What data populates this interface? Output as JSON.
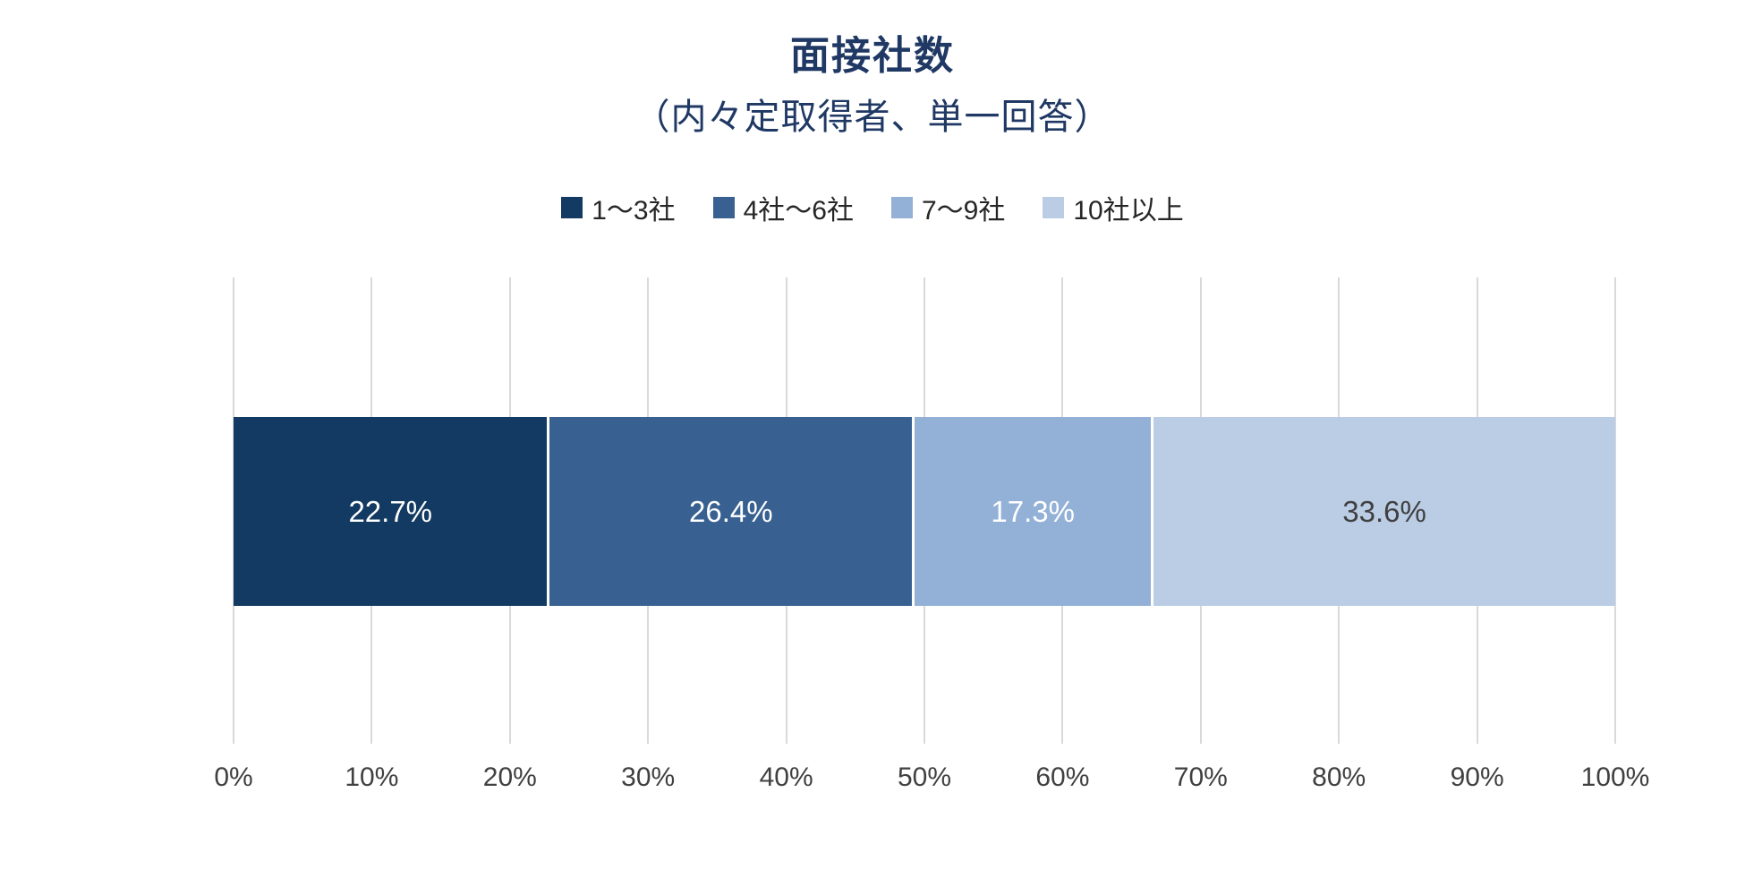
{
  "chart_data": {
    "type": "bar",
    "stacked": true,
    "orientation": "horizontal",
    "title": "面接社数",
    "subtitle": "（内々定取得者、単一回答）",
    "series": [
      {
        "name": "1〜3社",
        "value": 22.7,
        "label": "22.7%",
        "color": "#123A62",
        "label_color": "#FFFFFF"
      },
      {
        "name": "4社〜6社",
        "value": 26.4,
        "label": "26.4%",
        "color": "#386192",
        "label_color": "#FFFFFF"
      },
      {
        "name": "7〜9社",
        "value": 17.3,
        "label": "17.3%",
        "color": "#93B0D6",
        "label_color": "#FFFFFF"
      },
      {
        "name": "10社以上",
        "value": 33.6,
        "label": "33.6%",
        "color": "#BACDE5",
        "label_color": "#404040"
      }
    ],
    "x_axis": {
      "min": 0,
      "max": 100,
      "ticks": [
        "0%",
        "10%",
        "20%",
        "30%",
        "40%",
        "50%",
        "60%",
        "70%",
        "80%",
        "90%",
        "100%"
      ]
    },
    "legend_position": "top",
    "grid": true,
    "colors": {
      "title": "#1F3864",
      "legend_text": "#262626",
      "axis_text": "#404040",
      "gridline": "#D9D9D9",
      "background": "#FFFFFF"
    }
  }
}
